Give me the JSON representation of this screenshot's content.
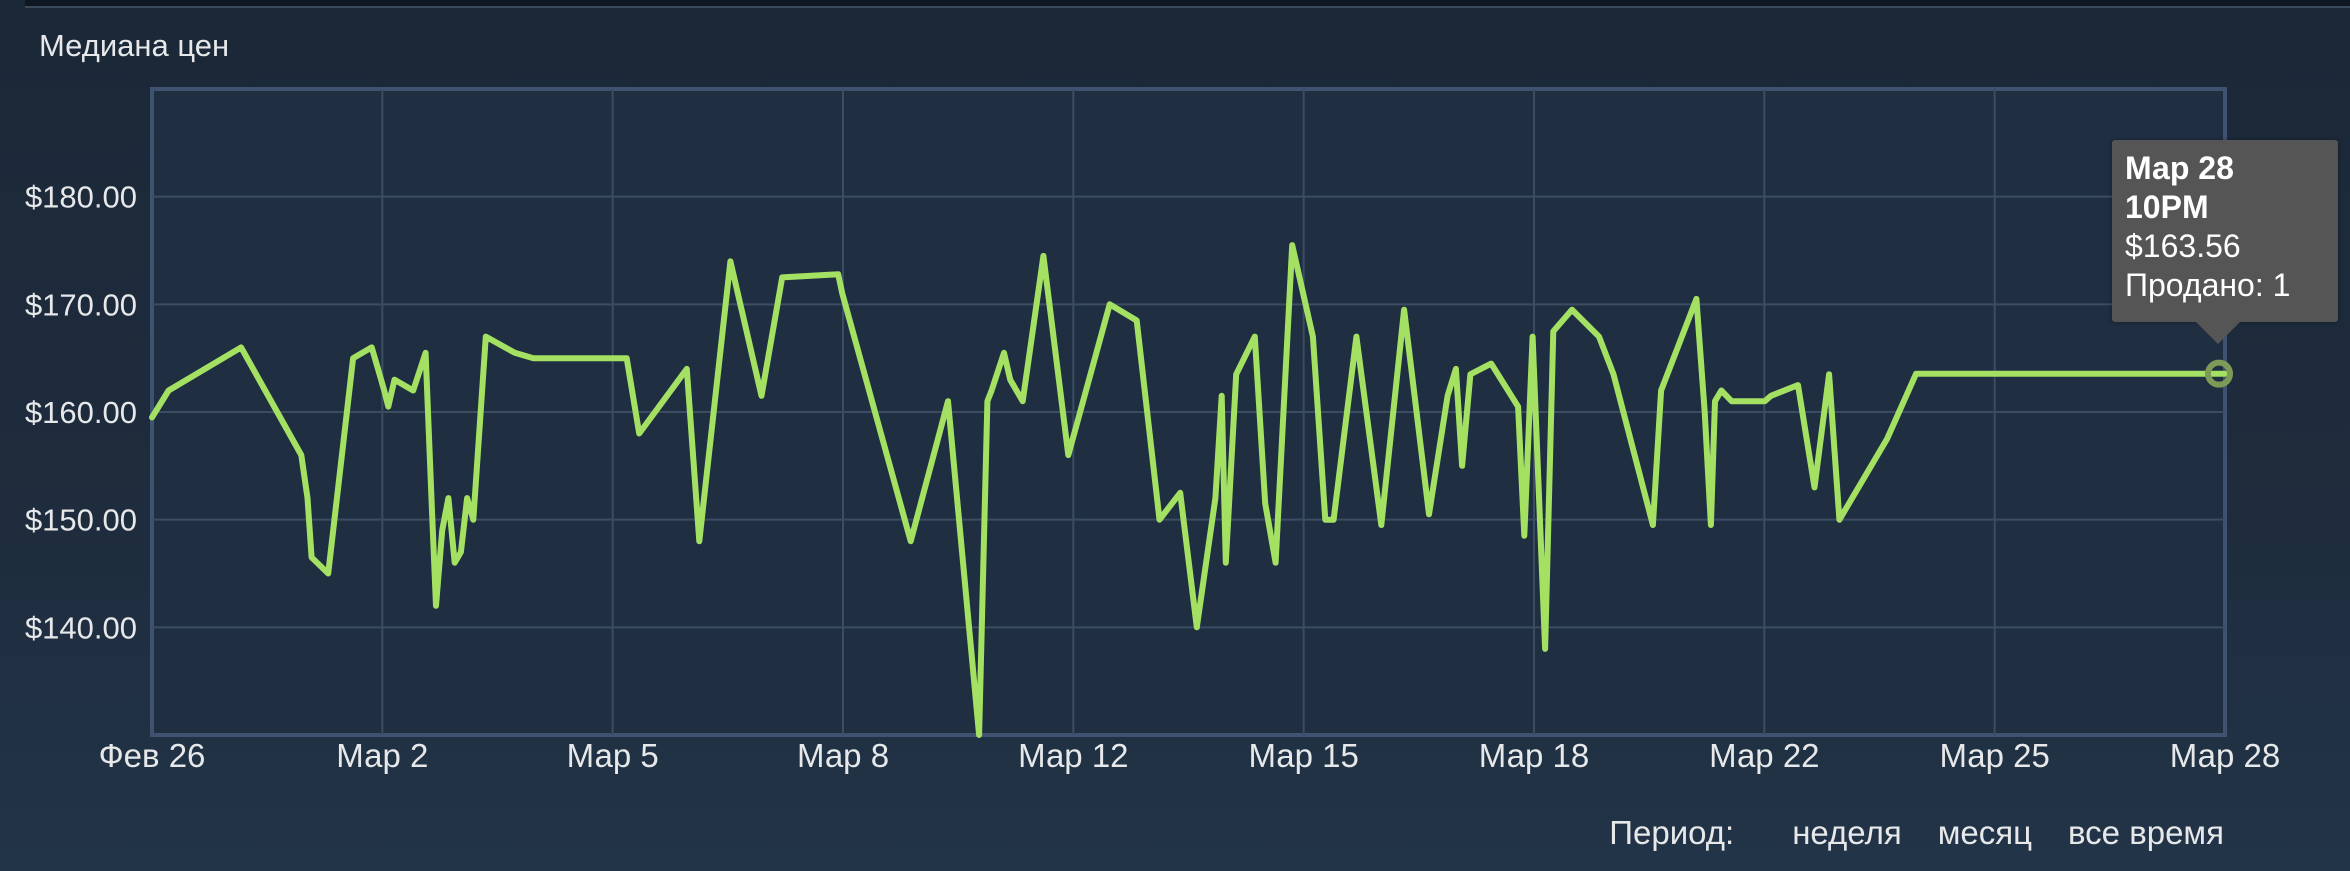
{
  "panel": {
    "title": "Медиана цен"
  },
  "footer": {
    "label": "Период:",
    "options": [
      "неделя",
      "месяц",
      "все время"
    ]
  },
  "tooltip": {
    "date": "Мар 28",
    "time": "10PM",
    "price": "$163.56",
    "sold": "Продано: 1"
  },
  "colors": {
    "line": "#a4e163",
    "plot_bg": "#1f2e41",
    "grid": "#3b4c63",
    "plot_border": "#3f5370",
    "marker": "#7e9a57"
  },
  "chart_data": {
    "type": "line",
    "title": "",
    "xlabel": "",
    "ylabel": "",
    "x_ticks": [
      "Фев 26",
      "Мар 2",
      "Мар 5",
      "Мар 8",
      "Мар 12",
      "Мар 15",
      "Мар 18",
      "Мар 22",
      "Мар 25",
      "Мар 28"
    ],
    "y_ticks": [
      "$140.00",
      "$150.00",
      "$160.00",
      "$170.00",
      "$180.00"
    ],
    "ylim": [
      130,
      190
    ],
    "grid": true,
    "series": [
      {
        "x": [
          0.0,
          0.008,
          0.043,
          0.072,
          0.075,
          0.077,
          0.085,
          0.094,
          0.097,
          0.106,
          0.109,
          0.112,
          0.114,
          0.117,
          0.126,
          0.132,
          0.135,
          0.137,
          0.14,
          0.143,
          0.146,
          0.149,
          0.152,
          0.155,
          0.161,
          0.175,
          0.184,
          0.229,
          0.235,
          0.258,
          0.264,
          0.279,
          0.294,
          0.304,
          0.331,
          0.333,
          0.366,
          0.384,
          0.399,
          0.403,
          0.405,
          0.411,
          0.414,
          0.42,
          0.43,
          0.442,
          0.462,
          0.475,
          0.486,
          0.496,
          0.504,
          0.513,
          0.516,
          0.518,
          0.523,
          0.532,
          0.537,
          0.542,
          0.55,
          0.56,
          0.566,
          0.57,
          0.581,
          0.593,
          0.604,
          0.616,
          0.625,
          0.629,
          0.632,
          0.636,
          0.646,
          0.659,
          0.662,
          0.666,
          0.672,
          0.676,
          0.685,
          0.698,
          0.705,
          0.724,
          0.728,
          0.745,
          0.749,
          0.752,
          0.754,
          0.757,
          0.762,
          0.778,
          0.781,
          0.794,
          0.802,
          0.809,
          0.814,
          0.837,
          0.851,
          0.86,
          0.864,
          0.868,
          0.872,
          0.876,
          0.881,
          0.909,
          0.913,
          0.934,
          0.944,
          0.969,
          0.975,
          0.98,
          0.986,
          1.0
        ],
        "values": [
          159.5,
          162,
          166,
          156,
          152,
          146.5,
          145,
          160,
          165,
          166,
          164,
          162,
          160.5,
          163,
          162,
          165.5,
          151,
          142,
          149,
          152,
          146,
          147,
          152,
          150,
          167,
          165.5,
          165,
          165,
          158,
          164,
          148,
          174,
          161.5,
          172.5,
          172.8,
          171,
          148,
          161,
          130,
          161,
          162,
          165.5,
          163,
          161,
          174.5,
          156,
          170,
          168.5,
          150,
          152.5,
          140,
          152,
          161.5,
          146,
          163.5,
          167,
          151.5,
          146,
          175.5,
          167,
          150,
          150,
          167,
          149.5,
          169.5,
          150.5,
          161.5,
          164,
          155,
          163.5,
          164.5,
          160.5,
          148.5,
          167,
          138,
          167.5,
          169.5,
          167,
          163.5,
          149.5,
          162,
          170.5,
          160,
          149.5,
          161,
          162,
          161,
          161,
          161.5,
          162.5,
          153,
          163.5,
          150,
          157.5,
          163.56,
          163.56,
          163.56,
          163.56,
          163.56,
          163.56,
          163.56,
          163.56,
          163.56,
          163.56,
          163.56,
          163.56,
          163.56,
          163.56,
          163.56,
          163.56
        ]
      }
    ]
  }
}
